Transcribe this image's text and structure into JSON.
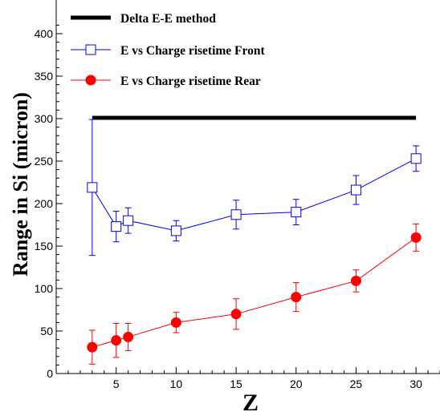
{
  "chart_data": {
    "type": "line",
    "title": "",
    "xlabel": "Z",
    "ylabel": "Range in Si (micron)",
    "xlim": [
      0,
      32
    ],
    "ylim": [
      0,
      400
    ],
    "x_ticks": [
      5,
      10,
      15,
      20,
      25,
      30
    ],
    "y_ticks": [
      0,
      50,
      100,
      150,
      200,
      250,
      300,
      350,
      400
    ],
    "grid": false,
    "legend_position": "top-left",
    "series": [
      {
        "name": "Delta E-E method",
        "color": "#000000",
        "marker": "none",
        "x": [
          3,
          30
        ],
        "y": [
          301,
          301
        ]
      },
      {
        "name": "E vs Charge risetime Front",
        "color": "#0000ff",
        "marker": "open-square",
        "x": [
          3,
          5,
          6,
          10,
          15,
          20,
          25,
          30
        ],
        "y": [
          219,
          173,
          180,
          168,
          187,
          190,
          216,
          253
        ],
        "err": [
          80,
          18,
          15,
          12,
          17,
          15,
          17,
          15
        ]
      },
      {
        "name": "E vs Charge risetime Rear",
        "color": "#ff0000",
        "marker": "filled-circle",
        "x": [
          3,
          5,
          6,
          10,
          15,
          20,
          25,
          30
        ],
        "y": [
          31,
          39,
          43,
          60,
          70,
          90,
          109,
          160
        ],
        "err": [
          20,
          20,
          16,
          12,
          18,
          17,
          13,
          16
        ]
      }
    ]
  }
}
